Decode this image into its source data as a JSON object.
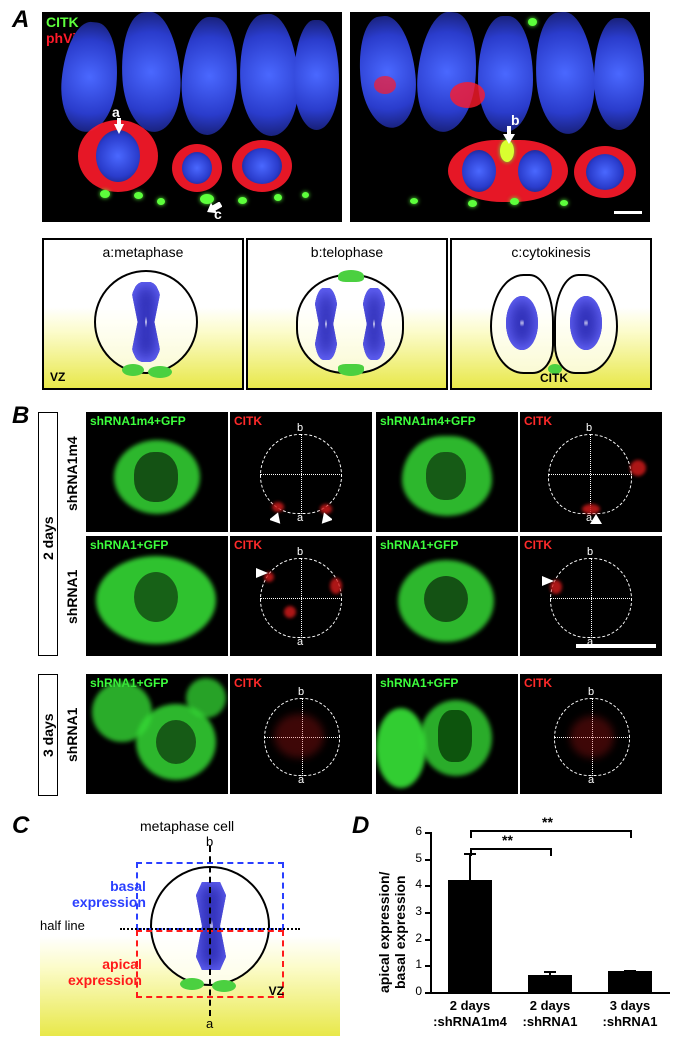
{
  "labels": {
    "A": "A",
    "B": "B",
    "C": "C",
    "D": "D"
  },
  "panelA": {
    "channel_citk": "CITK",
    "channel_phvim": "phVim",
    "citk_color": "#5dff3c",
    "phvim_color": "#ff1a2a",
    "nucleus_color": "#2a3ccc",
    "arrow_labels": {
      "a": "a",
      "b": "b",
      "c": "c"
    },
    "diagrams": [
      {
        "title": "a:metaphase"
      },
      {
        "title": "b:telophase"
      },
      {
        "title": "c:cytokinesis"
      }
    ],
    "vz_label": "VZ",
    "citk_label": "CITK"
  },
  "panelB": {
    "left_outer_2d": "2 days",
    "left_outer_3d": "3 days",
    "row_labels": {
      "shRNA1m4": "shRNA1m4",
      "shRNA1": "shRNA1"
    },
    "gfp_label_m4": "shRNA1m4+GFP",
    "gfp_label_1": "shRNA1+GFP",
    "citk_label": "CITK",
    "ab": {
      "a": "a",
      "b": "b"
    },
    "gfp_color": "#35d835",
    "citk_inner_color": "#cc1a1a"
  },
  "panelC": {
    "title": "metaphase cell",
    "basal": "basal\nexpression",
    "apical": "apical\nexpression",
    "half": "half line",
    "a": "a",
    "b": "b",
    "vz": "VZ",
    "basal_color": "#2a3fff",
    "apical_color": "#ff1a1a",
    "chrom_color": "#3c3ccc",
    "citk_color": "#4bd040"
  },
  "panelD": {
    "type": "bar",
    "ylabel": "apical expression/\nbasal expression",
    "ylim": [
      0,
      6
    ],
    "ytick_step": 1,
    "bars": [
      {
        "label1": "2 days",
        "label2": ":shRNA1m4",
        "value": 4.2,
        "err": 1.0,
        "color": "#000000"
      },
      {
        "label1": "2 days",
        "label2": ":shRNA1",
        "value": 0.65,
        "err": 0.12,
        "color": "#000000"
      },
      {
        "label1": "3 days",
        "label2": ":shRNA1",
        "value": 0.78,
        "err": 0.05,
        "color": "#000000"
      }
    ],
    "sig": [
      {
        "from": 0,
        "to": 1,
        "stars": "**"
      },
      {
        "from": 0,
        "to": 2,
        "stars": "**"
      }
    ],
    "axis_color": "#000000",
    "bg_color": "#ffffff"
  }
}
